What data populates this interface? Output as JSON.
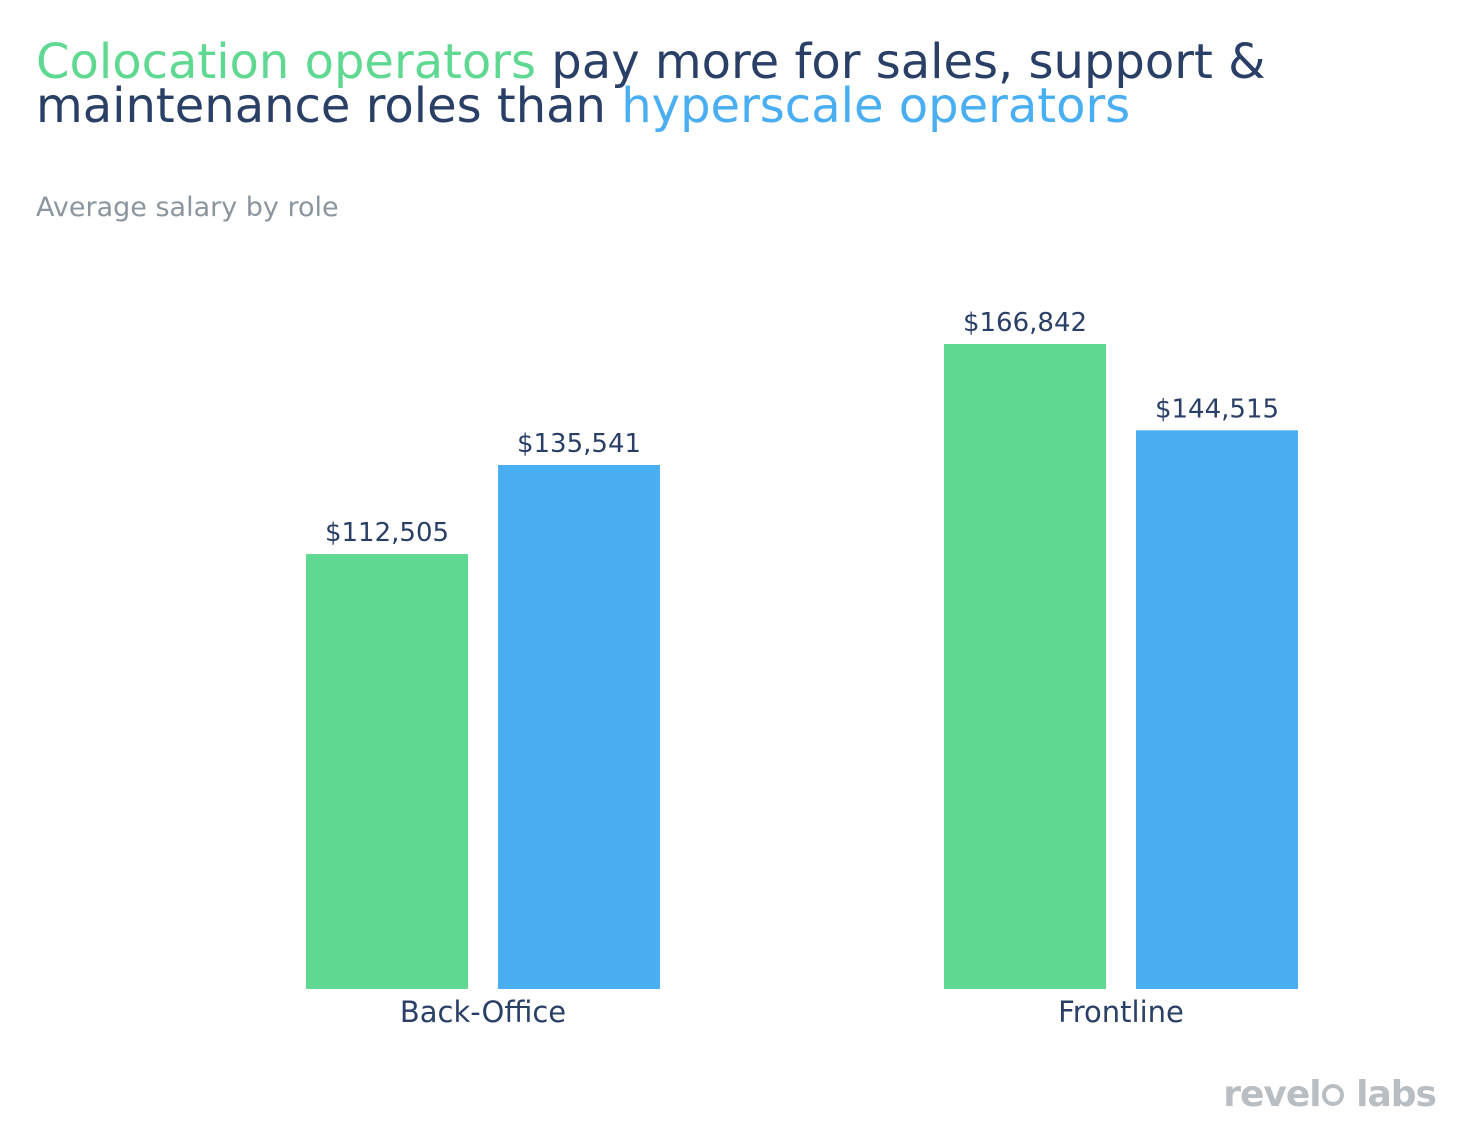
{
  "title": {
    "part1_highlight": "Colocation operators",
    "part2": " pay more for sales, support & maintenance roles than ",
    "part3_highlight": "hyperscale operators"
  },
  "subtitle": "Average salary by role",
  "logo": {
    "text_before": "revel",
    "text_after": "labs"
  },
  "colors": {
    "colocation": "#5fd991",
    "hyperscale": "#4aaef2",
    "text": "#2a3f66",
    "muted": "#8b969f"
  },
  "chart_data": {
    "type": "bar",
    "categories": [
      "Back-Office",
      "Frontline"
    ],
    "series": [
      {
        "values": [
          112505,
          166842
        ],
        "labels": [
          "$112,505",
          "$166,842"
        ],
        "color": "#5fd991"
      },
      {
        "values": [
          135541,
          144515
        ],
        "labels": [
          "$135,541",
          "$144,515"
        ],
        "color": "#4aaef2"
      }
    ],
    "ylim": [
      0,
      180000
    ],
    "grid": false,
    "legend": "none"
  }
}
